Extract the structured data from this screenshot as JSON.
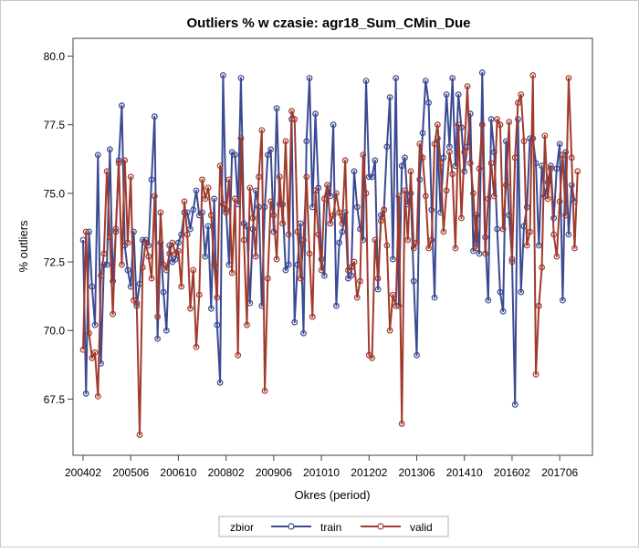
{
  "chart_data": {
    "type": "line",
    "title": "Outliers % w czasie: agr18_Sum_CMin_Due",
    "xlabel": "Okres (period)",
    "ylabel": "% outliers",
    "ylim": [
      66.0,
      80.5
    ],
    "yticks": [
      "67.5",
      "70.0",
      "72.5",
      "75.0",
      "77.5",
      "80.0"
    ],
    "ytick_values": [
      67.5,
      70.0,
      72.5,
      75.0,
      77.5,
      80.0
    ],
    "xticks": [
      "200402",
      "200506",
      "200610",
      "200802",
      "200906",
      "201010",
      "201202",
      "201306",
      "201410",
      "201602",
      "201706"
    ],
    "x_period_count": 168,
    "x_tick_every": 16,
    "grid": false,
    "legend": {
      "title": "zbior",
      "position": "bottom"
    },
    "series": [
      {
        "name": "train",
        "color": "#3b4a92",
        "values": [
          73.3,
          67.7,
          73.6,
          71.6,
          70.2,
          76.4,
          68.8,
          72.4,
          72.4,
          76.6,
          71.8,
          73.6,
          76.2,
          78.2,
          73.1,
          72.2,
          71.6,
          73.6,
          70.9,
          71.7,
          73.3,
          73.3,
          73.1,
          75.5,
          77.8,
          69.7,
          73.2,
          71.4,
          70.0,
          73.1,
          72.5,
          72.6,
          73.2,
          73.5,
          74.3,
          74.3,
          73.7,
          74.4,
          75.1,
          74.2,
          74.3,
          72.7,
          73.8,
          70.8,
          74.8,
          70.2,
          68.1,
          79.3,
          74.4,
          72.4,
          76.5,
          76.4,
          74.6,
          79.2,
          73.9,
          73.8,
          71.0,
          73.7,
          75.1,
          74.5,
          70.9,
          74.5,
          76.4,
          76.6,
          73.6,
          78.1,
          74.6,
          74.6,
          72.2,
          72.4,
          77.7,
          70.3,
          72.4,
          73.9,
          69.9,
          76.9,
          79.2,
          74.5,
          77.9,
          75.2,
          72.6,
          72.0,
          75.3,
          74.9,
          77.5,
          70.9,
          73.2,
          73.6,
          74.3,
          71.9,
          72.0,
          75.8,
          74.5,
          73.7,
          73.3,
          79.1,
          75.6,
          75.6,
          76.2,
          71.5,
          74.2,
          74.4,
          76.7,
          78.5,
          72.6,
          79.2,
          70.9,
          76.0,
          76.3,
          74.6,
          75.0,
          71.8,
          69.1,
          75.5,
          77.2,
          79.1,
          78.3,
          74.4,
          71.2,
          77.0,
          74.3,
          76.3,
          78.6,
          76.7,
          79.2,
          76.0,
          78.6,
          77.4,
          75.8,
          76.7,
          77.9,
          72.9,
          74.2,
          72.8,
          79.4,
          73.4,
          71.1,
          77.7,
          76.5,
          73.7,
          71.4,
          70.7,
          76.9,
          74.2,
          72.6,
          67.3,
          77.7,
          71.4,
          73.8,
          74.5,
          77.0,
          77.0,
          76.1,
          73.1,
          76.0,
          74.9,
          75.4,
          76.0,
          74.1,
          75.9,
          76.8,
          71.1,
          76.5,
          73.5,
          75.3,
          74.7
        ]
      },
      {
        "name": "valid",
        "color": "#a13a2c",
        "values": [
          69.3,
          73.6,
          69.9,
          69.0,
          69.2,
          67.6,
          72.0,
          72.8,
          75.8,
          73.4,
          70.6,
          73.7,
          76.1,
          72.4,
          76.2,
          73.2,
          75.6,
          71.1,
          71.0,
          66.2,
          72.3,
          73.2,
          72.7,
          71.9,
          74.9,
          70.5,
          74.3,
          72.4,
          72.2,
          72.8,
          73.2,
          72.8,
          72.9,
          71.6,
          74.7,
          73.5,
          70.8,
          72.2,
          69.4,
          71.3,
          75.5,
          74.8,
          75.2,
          74.2,
          72.4,
          71.2,
          76.0,
          74.6,
          74.3,
          75.5,
          72.1,
          74.8,
          69.1,
          77.0,
          73.3,
          70.2,
          75.2,
          74.1,
          72.7,
          75.6,
          77.3,
          67.8,
          71.9,
          74.7,
          74.2,
          72.6,
          75.6,
          73.9,
          76.9,
          73.5,
          78.0,
          77.7,
          73.6,
          71.9,
          73.3,
          75.6,
          72.8,
          70.5,
          75.1,
          73.5,
          72.2,
          74.8,
          75.3,
          73.9,
          74.2,
          75.0,
          74.3,
          73.9,
          76.2,
          72.2,
          72.3,
          72.5,
          71.2,
          71.8,
          76.4,
          75.0,
          69.1,
          69.0,
          73.3,
          71.9,
          74.0,
          74.4,
          73.1,
          70.0,
          71.3,
          70.9,
          74.9,
          66.6,
          75.1,
          73.3,
          75.8,
          73.0,
          73.2,
          76.8,
          76.3,
          74.9,
          73.0,
          73.3,
          76.8,
          77.5,
          76.1,
          73.6,
          75.1,
          76.5,
          75.7,
          73.0,
          77.5,
          74.1,
          76.5,
          78.9,
          76.1,
          75.0,
          73.0,
          75.9,
          77.5,
          72.8,
          74.8,
          76.1,
          74.9,
          77.7,
          77.5,
          73.7,
          75.3,
          77.6,
          72.5,
          76.3,
          78.3,
          78.6,
          76.9,
          73.1,
          73.6,
          79.3,
          68.4,
          70.9,
          72.3,
          77.1,
          74.8,
          75.9,
          73.5,
          72.7,
          74.7,
          76.4,
          74.2,
          79.2,
          76.3,
          73.0,
          75.8
        ]
      }
    ]
  }
}
